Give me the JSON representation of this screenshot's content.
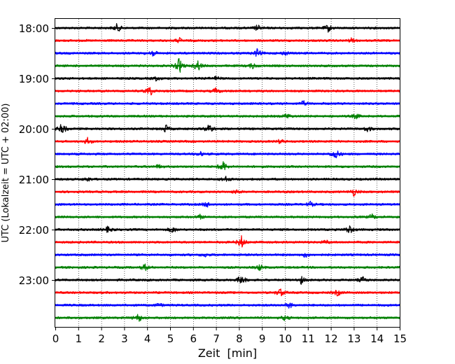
{
  "chart_data": {
    "type": "line",
    "subtype": "helicorder",
    "title": "",
    "xlabel": "Zeit  [min]",
    "ylabel": "UTC (Lokalzeit = UTC + 02:00)",
    "xlim": [
      0,
      15
    ],
    "x_ticks": [
      0,
      1,
      2,
      3,
      4,
      5,
      6,
      7,
      8,
      9,
      10,
      11,
      12,
      13,
      14,
      15
    ],
    "x_tick_labels": [
      "0",
      "1",
      "2",
      "3",
      "4",
      "5",
      "6",
      "7",
      "8",
      "9",
      "10",
      "11",
      "12",
      "13",
      "14",
      "15"
    ],
    "y_tick_labels": [
      "18:00",
      "19:00",
      "20:00",
      "21:00",
      "22:00",
      "23:00"
    ],
    "y_tick_rows": [
      0,
      4,
      8,
      12,
      16,
      20
    ],
    "grid": {
      "vertical": true,
      "style": "dotted"
    },
    "row_minutes": 15,
    "rows": [
      {
        "start": "18:00",
        "color": "#000000",
        "events": [
          [
            2.7,
            0.45
          ],
          [
            8.8,
            0.3
          ],
          [
            11.9,
            0.4
          ]
        ]
      },
      {
        "start": "18:15",
        "color": "#ff0000",
        "events": [
          [
            5.4,
            0.25
          ],
          [
            12.9,
            0.2
          ]
        ]
      },
      {
        "start": "18:30",
        "color": "#0000ff",
        "events": [
          [
            4.2,
            0.45
          ],
          [
            8.8,
            0.4
          ],
          [
            10.0,
            0.2
          ]
        ]
      },
      {
        "start": "18:45",
        "color": "#008000",
        "events": [
          [
            5.4,
            0.8
          ],
          [
            6.2,
            0.6
          ],
          [
            8.6,
            0.3
          ]
        ]
      },
      {
        "start": "19:00",
        "color": "#000000",
        "events": [
          [
            4.4,
            0.2
          ],
          [
            7.0,
            0.2
          ]
        ]
      },
      {
        "start": "19:15",
        "color": "#ff0000",
        "events": [
          [
            4.1,
            0.6
          ],
          [
            7.0,
            0.3
          ]
        ]
      },
      {
        "start": "19:30",
        "color": "#0000ff",
        "events": [
          [
            10.8,
            0.25
          ]
        ]
      },
      {
        "start": "19:45",
        "color": "#008000",
        "events": [
          [
            10.1,
            0.3
          ],
          [
            13.1,
            0.25
          ]
        ]
      },
      {
        "start": "20:00",
        "color": "#000000",
        "events": [
          [
            0.3,
            0.6
          ],
          [
            4.8,
            0.4
          ],
          [
            6.7,
            0.55
          ],
          [
            13.6,
            0.3
          ]
        ]
      },
      {
        "start": "20:15",
        "color": "#ff0000",
        "events": [
          [
            1.4,
            0.35
          ],
          [
            9.8,
            0.2
          ]
        ]
      },
      {
        "start": "20:30",
        "color": "#0000ff",
        "events": [
          [
            12.2,
            0.6
          ],
          [
            6.3,
            0.2
          ]
        ]
      },
      {
        "start": "20:45",
        "color": "#008000",
        "events": [
          [
            7.3,
            0.65
          ],
          [
            4.5,
            0.2
          ]
        ]
      },
      {
        "start": "21:00",
        "color": "#000000",
        "events": [
          [
            7.4,
            0.35
          ],
          [
            1.4,
            0.25
          ]
        ]
      },
      {
        "start": "21:15",
        "color": "#ff0000",
        "events": [
          [
            13.0,
            0.4
          ],
          [
            7.9,
            0.2
          ]
        ]
      },
      {
        "start": "21:30",
        "color": "#0000ff",
        "events": [
          [
            6.6,
            0.3
          ],
          [
            11.1,
            0.25
          ]
        ]
      },
      {
        "start": "21:45",
        "color": "#008000",
        "events": [
          [
            13.8,
            0.25
          ],
          [
            6.3,
            0.2
          ]
        ]
      },
      {
        "start": "22:00",
        "color": "#000000",
        "events": [
          [
            12.8,
            0.5
          ],
          [
            5.1,
            0.35
          ],
          [
            2.3,
            0.3
          ]
        ]
      },
      {
        "start": "22:15",
        "color": "#ff0000",
        "events": [
          [
            8.1,
            0.65
          ],
          [
            11.8,
            0.2
          ]
        ]
      },
      {
        "start": "22:30",
        "color": "#0000ff",
        "events": [
          [
            10.9,
            0.25
          ],
          [
            6.5,
            0.2
          ]
        ]
      },
      {
        "start": "22:45",
        "color": "#008000",
        "events": [
          [
            3.9,
            0.35
          ],
          [
            8.9,
            0.3
          ]
        ]
      },
      {
        "start": "23:00",
        "color": "#000000",
        "events": [
          [
            8.1,
            0.55
          ],
          [
            10.7,
            0.4
          ],
          [
            13.4,
            0.3
          ]
        ]
      },
      {
        "start": "23:15",
        "color": "#ff0000",
        "events": [
          [
            9.8,
            0.45
          ],
          [
            12.3,
            0.3
          ]
        ]
      },
      {
        "start": "23:30",
        "color": "#0000ff",
        "events": [
          [
            10.2,
            0.3
          ],
          [
            4.5,
            0.2
          ]
        ]
      },
      {
        "start": "23:45",
        "color": "#008000",
        "events": [
          [
            3.6,
            0.5
          ],
          [
            10.0,
            0.25
          ]
        ]
      }
    ]
  }
}
